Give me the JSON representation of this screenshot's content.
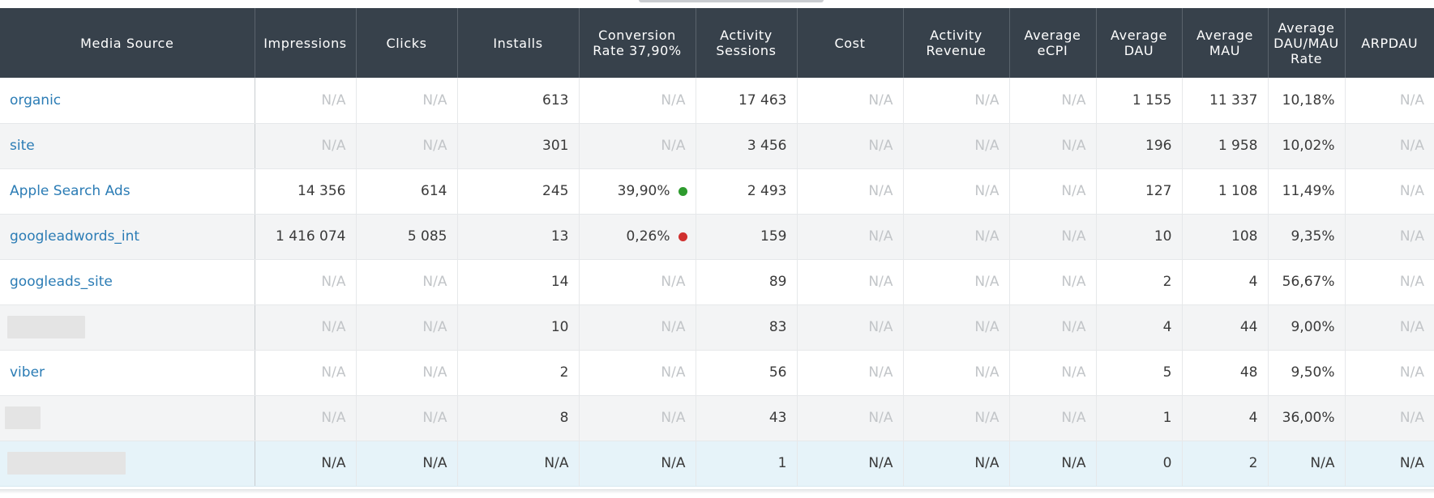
{
  "columns": [
    "Media Source",
    "Impressions",
    "Clicks",
    "Installs",
    "Conversion Rate 37,90%",
    "Activity Sessions",
    "Cost",
    "Activity Revenue",
    "Average eCPI",
    "Average DAU",
    "Average MAU",
    "Average DAU/MAU Rate",
    "ARPDAU"
  ],
  "colors": {
    "header_bg": "#37414b",
    "link": "#2b7cb5",
    "positive_dot": "#2e9b2e",
    "negative_dot": "#d0302f",
    "total_row_bg": "#e6f3f9"
  },
  "rows": [
    {
      "source": "organic",
      "impressions": "N/A",
      "clicks": "N/A",
      "installs": "613",
      "conversion_rate": "N/A",
      "activity_sessions": "17 463",
      "cost": "N/A",
      "activity_revenue": "N/A",
      "average_ecpi": "N/A",
      "average_dau": "1 155",
      "average_mau": "11 337",
      "dau_mau_rate": "10,18%",
      "arpdau": "N/A"
    },
    {
      "source": "site",
      "impressions": "N/A",
      "clicks": "N/A",
      "installs": "301",
      "conversion_rate": "N/A",
      "activity_sessions": "3 456",
      "cost": "N/A",
      "activity_revenue": "N/A",
      "average_ecpi": "N/A",
      "average_dau": "196",
      "average_mau": "1 958",
      "dau_mau_rate": "10,02%",
      "arpdau": "N/A"
    },
    {
      "source": "Apple Search Ads",
      "impressions": "14 356",
      "clicks": "614",
      "installs": "245",
      "conversion_rate": "39,90%",
      "conversion_indicator": "green-dot",
      "activity_sessions": "2 493",
      "cost": "N/A",
      "activity_revenue": "N/A",
      "average_ecpi": "N/A",
      "average_dau": "127",
      "average_mau": "1 108",
      "dau_mau_rate": "11,49%",
      "arpdau": "N/A"
    },
    {
      "source": "googleadwords_int",
      "impressions": "1 416 074",
      "clicks": "5 085",
      "installs": "13",
      "conversion_rate": "0,26%",
      "conversion_indicator": "red-dot",
      "activity_sessions": "159",
      "cost": "N/A",
      "activity_revenue": "N/A",
      "average_ecpi": "N/A",
      "average_dau": "10",
      "average_mau": "108",
      "dau_mau_rate": "9,35%",
      "arpdau": "N/A"
    },
    {
      "source": "googleads_site",
      "impressions": "N/A",
      "clicks": "N/A",
      "installs": "14",
      "conversion_rate": "N/A",
      "activity_sessions": "89",
      "cost": "N/A",
      "activity_revenue": "N/A",
      "average_ecpi": "N/A",
      "average_dau": "2",
      "average_mau": "4",
      "dau_mau_rate": "56,67%",
      "arpdau": "N/A"
    },
    {
      "source": "",
      "redacted": true,
      "impressions": "N/A",
      "clicks": "N/A",
      "installs": "10",
      "conversion_rate": "N/A",
      "activity_sessions": "83",
      "cost": "N/A",
      "activity_revenue": "N/A",
      "average_ecpi": "N/A",
      "average_dau": "4",
      "average_mau": "44",
      "dau_mau_rate": "9,00%",
      "arpdau": "N/A"
    },
    {
      "source": "viber",
      "impressions": "N/A",
      "clicks": "N/A",
      "installs": "2",
      "conversion_rate": "N/A",
      "activity_sessions": "56",
      "cost": "N/A",
      "activity_revenue": "N/A",
      "average_ecpi": "N/A",
      "average_dau": "5",
      "average_mau": "48",
      "dau_mau_rate": "9,50%",
      "arpdau": "N/A"
    },
    {
      "source": "",
      "redacted": true,
      "impressions": "N/A",
      "clicks": "N/A",
      "installs": "8",
      "conversion_rate": "N/A",
      "activity_sessions": "43",
      "cost": "N/A",
      "activity_revenue": "N/A",
      "average_ecpi": "N/A",
      "average_dau": "1",
      "average_mau": "4",
      "dau_mau_rate": "36,00%",
      "arpdau": "N/A"
    },
    {
      "source": "",
      "redacted": true,
      "total": true,
      "impressions": "N/A",
      "clicks": "N/A",
      "installs": "N/A",
      "conversion_rate": "N/A",
      "activity_sessions": "1",
      "cost": "N/A",
      "activity_revenue": "N/A",
      "average_ecpi": "N/A",
      "average_dau": "0",
      "average_mau": "2",
      "dau_mau_rate": "N/A",
      "arpdau": "N/A"
    }
  ]
}
